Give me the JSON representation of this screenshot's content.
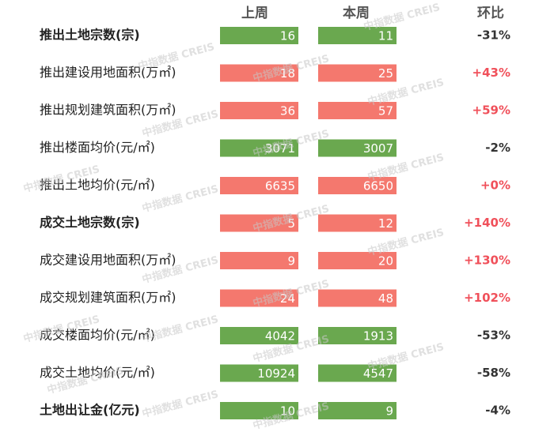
{
  "header": {
    "columns": [
      "上周",
      "本周",
      "环比"
    ]
  },
  "watermark": "中指数据 CREIS",
  "table": {
    "rows": [
      {
        "label": "推出土地宗数(宗)",
        "last": 16,
        "this": 11,
        "change": "-31%",
        "last_color": "#6aa84f",
        "this_color": "#6aa84f",
        "change_color": "#333333",
        "bold": true
      },
      {
        "label": "推出建设用地面积(万㎡)",
        "last": 18,
        "this": 25,
        "change": "+43%",
        "last_color": "#f4786e",
        "this_color": "#f4786e",
        "change_color": "#f0505a",
        "bold": false
      },
      {
        "label": "推出规划建筑面积(万㎡)",
        "last": 36,
        "this": 57,
        "change": "+59%",
        "last_color": "#f4786e",
        "this_color": "#f4786e",
        "change_color": "#f0505a",
        "bold": false
      },
      {
        "label": "推出楼面均价(元/㎡)",
        "last": 3071,
        "this": 3007,
        "change": "-2%",
        "last_color": "#6aa84f",
        "this_color": "#6aa84f",
        "change_color": "#333333",
        "bold": false
      },
      {
        "label": "推出土地均价(元/㎡)",
        "last": 6635,
        "this": 6650,
        "change": "+0%",
        "last_color": "#f4786e",
        "this_color": "#f4786e",
        "change_color": "#f0505a",
        "bold": false
      },
      {
        "label": "成交土地宗数(宗)",
        "last": 5,
        "this": 12,
        "change": "+140%",
        "last_color": "#f4786e",
        "this_color": "#f4786e",
        "change_color": "#f0505a",
        "bold": true
      },
      {
        "label": "成交建设用地面积(万㎡)",
        "last": 9,
        "this": 20,
        "change": "+130%",
        "last_color": "#f4786e",
        "this_color": "#f4786e",
        "change_color": "#f0505a",
        "bold": false
      },
      {
        "label": "成交规划建筑面积(万㎡)",
        "last": 24,
        "this": 48,
        "change": "+102%",
        "last_color": "#f4786e",
        "this_color": "#f4786e",
        "change_color": "#f0505a",
        "bold": false
      },
      {
        "label": "成交楼面均价(元/㎡)",
        "last": 4042,
        "this": 1913,
        "change": "-53%",
        "last_color": "#6aa84f",
        "this_color": "#6aa84f",
        "change_color": "#333333",
        "bold": false
      },
      {
        "label": "成交土地均价(元/㎡)",
        "last": 10924,
        "this": 4547,
        "change": "-58%",
        "last_color": "#6aa84f",
        "this_color": "#6aa84f",
        "change_color": "#333333",
        "bold": false
      },
      {
        "label": "土地出让金(亿元)",
        "last": 10,
        "this": 9,
        "change": "-4%",
        "last_color": "#6aa84f",
        "this_color": "#6aa84f",
        "change_color": "#333333",
        "bold": true
      }
    ]
  }
}
